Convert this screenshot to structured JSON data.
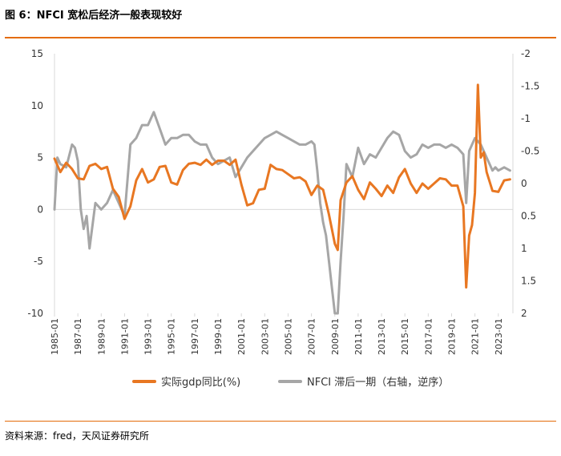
{
  "header": {
    "title": "图 6：NFCI 宽松后经济一般表现较好"
  },
  "footer": {
    "source": "资料来源：fred，天风证券研究所"
  },
  "colors": {
    "gdp": "#e87722",
    "nfci": "#a6a6a6",
    "accent": "#e46c0a",
    "axis": "#d9d9d9"
  },
  "chart_data": {
    "type": "line",
    "title": "",
    "x_tick_labels": [
      "1985-01",
      "1987-01",
      "1989-01",
      "1991-01",
      "1993-01",
      "1995-01",
      "1997-01",
      "1999-01",
      "2001-01",
      "2003-01",
      "2005-01",
      "2007-01",
      "2009-01",
      "2011-01",
      "2013-01",
      "2015-01",
      "2017-01",
      "2019-01",
      "2021-01",
      "2023-01"
    ],
    "x_range": [
      1985.0,
      2024.25
    ],
    "y_left": {
      "min": -10,
      "max": 15,
      "ticks": [
        15,
        10,
        5,
        0,
        -5,
        -10
      ],
      "tick_labels": [
        "15",
        "10",
        "5",
        "0",
        "-5",
        "-10"
      ]
    },
    "y_right": {
      "min": -2,
      "max": 2,
      "inverted": true,
      "ticks": [
        -2,
        -1.5,
        -1,
        -0.5,
        0,
        0.5,
        1,
        1.5,
        2
      ],
      "tick_labels": [
        "-2",
        "-1.5",
        "-1",
        "-0.5",
        "0",
        "0.5",
        "1",
        "1.5",
        "2"
      ]
    },
    "series": [
      {
        "name": "实际gdp同比(%)",
        "axis": "left",
        "x": [
          1985.0,
          1985.5,
          1986.0,
          1986.5,
          1987.0,
          1987.5,
          1988.0,
          1988.5,
          1989.0,
          1989.5,
          1990.0,
          1990.5,
          1991.0,
          1991.5,
          1992.0,
          1992.5,
          1993.0,
          1993.5,
          1994.0,
          1994.5,
          1995.0,
          1995.5,
          1996.0,
          1996.5,
          1997.0,
          1997.5,
          1998.0,
          1998.5,
          1999.0,
          1999.5,
          2000.0,
          2000.5,
          2001.0,
          2001.5,
          2002.0,
          2002.5,
          2003.0,
          2003.5,
          2004.0,
          2004.5,
          2005.0,
          2005.5,
          2006.0,
          2006.5,
          2007.0,
          2007.5,
          2008.0,
          2008.5,
          2009.0,
          2009.25,
          2009.5,
          2010.0,
          2010.5,
          2011.0,
          2011.5,
          2012.0,
          2012.5,
          2013.0,
          2013.5,
          2014.0,
          2014.5,
          2015.0,
          2015.5,
          2016.0,
          2016.5,
          2017.0,
          2017.5,
          2018.0,
          2018.5,
          2019.0,
          2019.5,
          2020.0,
          2020.25,
          2020.5,
          2020.75,
          2021.0,
          2021.25,
          2021.5,
          2021.75,
          2022.0,
          2022.5,
          2023.0,
          2023.5,
          2024.0
        ],
        "values": [
          4.9,
          3.6,
          4.5,
          3.9,
          3.0,
          2.9,
          4.2,
          4.4,
          3.9,
          4.1,
          2.0,
          1.2,
          -0.9,
          0.3,
          2.8,
          3.9,
          2.6,
          2.9,
          4.1,
          4.2,
          2.6,
          2.4,
          3.8,
          4.4,
          4.5,
          4.3,
          4.8,
          4.3,
          4.7,
          4.7,
          4.3,
          4.8,
          2.4,
          0.4,
          0.6,
          1.9,
          2.0,
          4.3,
          3.9,
          3.8,
          3.4,
          3.0,
          3.1,
          2.7,
          1.4,
          2.3,
          1.9,
          -0.5,
          -3.3,
          -3.9,
          0.9,
          2.6,
          3.2,
          1.9,
          1.0,
          2.6,
          2.0,
          1.3,
          2.3,
          1.6,
          3.1,
          3.9,
          2.5,
          1.6,
          2.5,
          2.0,
          2.5,
          3.0,
          2.9,
          2.3,
          2.3,
          0.3,
          -7.5,
          -2.5,
          -1.5,
          1.6,
          12.0,
          5.0,
          5.5,
          3.6,
          1.8,
          1.7,
          2.8,
          2.9
        ]
      },
      {
        "name": "NFCI 滞后一期（右轴，逆序）",
        "axis": "right",
        "x": [
          1985.0,
          1985.25,
          1985.5,
          1986.0,
          1986.5,
          1986.75,
          1987.0,
          1987.25,
          1987.5,
          1987.75,
          1988.0,
          1988.5,
          1989.0,
          1989.5,
          1990.0,
          1990.5,
          1991.0,
          1991.5,
          1992.0,
          1992.5,
          1993.0,
          1993.5,
          1994.0,
          1994.5,
          1995.0,
          1995.5,
          1996.0,
          1996.5,
          1997.0,
          1997.5,
          1998.0,
          1998.5,
          1999.0,
          1999.5,
          2000.0,
          2000.5,
          2001.0,
          2001.5,
          2002.0,
          2002.5,
          2003.0,
          2003.5,
          2004.0,
          2004.5,
          2005.0,
          2005.5,
          2006.0,
          2006.5,
          2007.0,
          2007.25,
          2007.5,
          2007.75,
          2008.0,
          2008.25,
          2008.5,
          2008.75,
          2009.0,
          2009.25,
          2009.5,
          2009.75,
          2010.0,
          2010.5,
          2011.0,
          2011.5,
          2012.0,
          2012.5,
          2013.0,
          2013.5,
          2014.0,
          2014.5,
          2015.0,
          2015.5,
          2016.0,
          2016.5,
          2017.0,
          2017.5,
          2018.0,
          2018.5,
          2019.0,
          2019.5,
          2020.0,
          2020.25,
          2020.5,
          2021.0,
          2021.5,
          2022.0,
          2022.25,
          2022.5,
          2022.75,
          2023.0,
          2023.5,
          2024.0
        ],
        "values": [
          0.4,
          -0.4,
          -0.3,
          -0.25,
          -0.6,
          -0.55,
          -0.35,
          0.4,
          0.7,
          0.5,
          1.0,
          0.3,
          0.4,
          0.3,
          0.1,
          0.3,
          0.5,
          -0.6,
          -0.7,
          -0.9,
          -0.9,
          -1.1,
          -0.85,
          -0.6,
          -0.7,
          -0.7,
          -0.75,
          -0.75,
          -0.65,
          -0.6,
          -0.6,
          -0.4,
          -0.3,
          -0.35,
          -0.4,
          -0.1,
          -0.25,
          -0.4,
          -0.5,
          -0.6,
          -0.7,
          -0.75,
          -0.8,
          -0.75,
          -0.7,
          -0.65,
          -0.6,
          -0.6,
          -0.65,
          -0.6,
          -0.2,
          0.3,
          0.6,
          0.8,
          1.2,
          1.6,
          2.0,
          2.0,
          1.2,
          0.5,
          -0.3,
          -0.1,
          -0.55,
          -0.3,
          -0.45,
          -0.4,
          -0.55,
          -0.7,
          -0.8,
          -0.75,
          -0.5,
          -0.4,
          -0.45,
          -0.6,
          -0.55,
          -0.6,
          -0.6,
          -0.55,
          -0.6,
          -0.55,
          -0.45,
          0.3,
          -0.5,
          -0.7,
          -0.6,
          -0.4,
          -0.3,
          -0.2,
          -0.25,
          -0.2,
          -0.25,
          -0.2
        ]
      }
    ],
    "legend_position": "bottom"
  }
}
